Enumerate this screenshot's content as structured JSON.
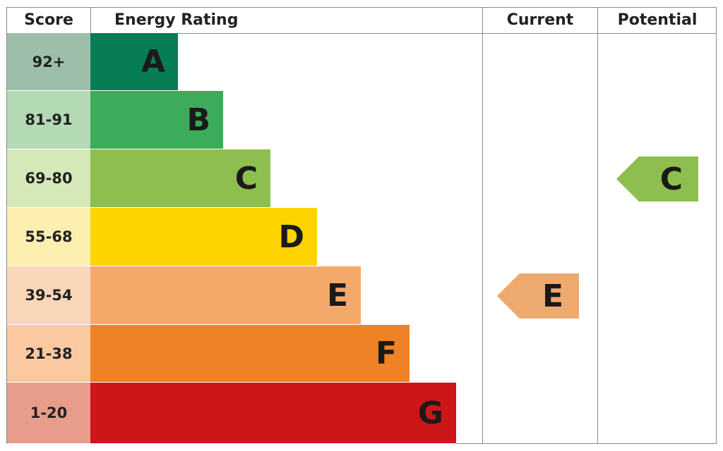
{
  "chart_data": {
    "type": "bar",
    "title": "",
    "headers": {
      "score": "Score",
      "rating": "Energy Rating",
      "current": "Current",
      "potential": "Potential"
    },
    "bands": [
      {
        "letter": "A",
        "range": "92+",
        "bar_color": "#077d55",
        "score_color": "#9dbfaa"
      },
      {
        "letter": "B",
        "range": "81-91",
        "bar_color": "#3cab5a",
        "score_color": "#b3d9b5"
      },
      {
        "letter": "C",
        "range": "69-80",
        "bar_color": "#8dbe4f",
        "score_color": "#d5e8b8"
      },
      {
        "letter": "D",
        "range": "55-68",
        "bar_color": "#fdd400",
        "score_color": "#fdefb0"
      },
      {
        "letter": "E",
        "range": "39-54",
        "bar_color": "#f4a96b",
        "score_color": "#fbd7ba"
      },
      {
        "letter": "F",
        "range": "21-38",
        "bar_color": "#ef8226",
        "score_color": "#fbc9a0"
      },
      {
        "letter": "G",
        "range": "1-20",
        "bar_color": "#cd1618",
        "score_color": "#e89d8c"
      }
    ],
    "current": {
      "letter": "E",
      "color": "#eda96e"
    },
    "potential": {
      "letter": "C",
      "color": "#8dbe4f"
    }
  }
}
